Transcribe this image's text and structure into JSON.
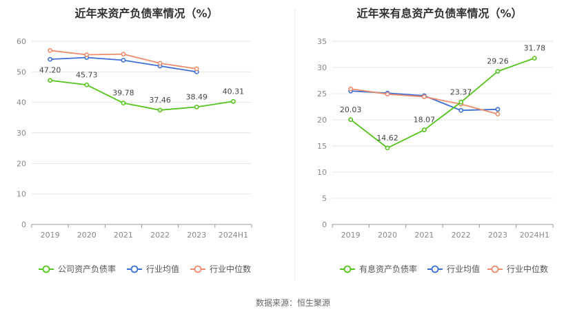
{
  "source_label": "数据来源：恒生聚源",
  "chart_data": [
    {
      "type": "line",
      "title": "近年来资产负债率情况（%）",
      "categories": [
        "2019",
        "2020",
        "2021",
        "2022",
        "2023",
        "2024H1"
      ],
      "ylim": [
        0,
        60
      ],
      "yticks": [
        0,
        10,
        20,
        30,
        40,
        50,
        60
      ],
      "grid": true,
      "legend_position": "bottom",
      "series": [
        {
          "name": "公司资产负债率",
          "color": "#52c41a",
          "values": [
            47.2,
            45.73,
            39.78,
            37.46,
            38.49,
            40.31
          ],
          "labels": [
            "47.20",
            "45.73",
            "39.78",
            "37.46",
            "38.49",
            "40.31"
          ]
        },
        {
          "name": "行业均值",
          "color": "#3a6fd8",
          "values": [
            54.1,
            54.7,
            53.8,
            51.9,
            50.0,
            null
          ]
        },
        {
          "name": "行业中位数",
          "color": "#f08a6a",
          "values": [
            57.0,
            55.6,
            55.8,
            52.8,
            51.0,
            null
          ]
        }
      ]
    },
    {
      "type": "line",
      "title": "近年来有息资产负债率情况（%）",
      "categories": [
        "2019",
        "2020",
        "2021",
        "2022",
        "2023",
        "2024H1"
      ],
      "ylim": [
        0,
        35
      ],
      "yticks": [
        0,
        5,
        10,
        15,
        20,
        25,
        30,
        35
      ],
      "grid": true,
      "legend_position": "bottom",
      "series": [
        {
          "name": "有息资产负债率",
          "color": "#52c41a",
          "values": [
            20.03,
            14.62,
            18.07,
            23.37,
            29.26,
            31.78
          ],
          "labels": [
            "20.03",
            "14.62",
            "18.07",
            "23.37",
            "29.26",
            "31.78"
          ]
        },
        {
          "name": "行业均值",
          "color": "#3a6fd8",
          "values": [
            25.5,
            25.1,
            24.6,
            21.8,
            22.0,
            null
          ]
        },
        {
          "name": "行业中位数",
          "color": "#f08a6a",
          "values": [
            25.9,
            24.9,
            24.4,
            23.0,
            21.1,
            null
          ]
        }
      ]
    }
  ]
}
